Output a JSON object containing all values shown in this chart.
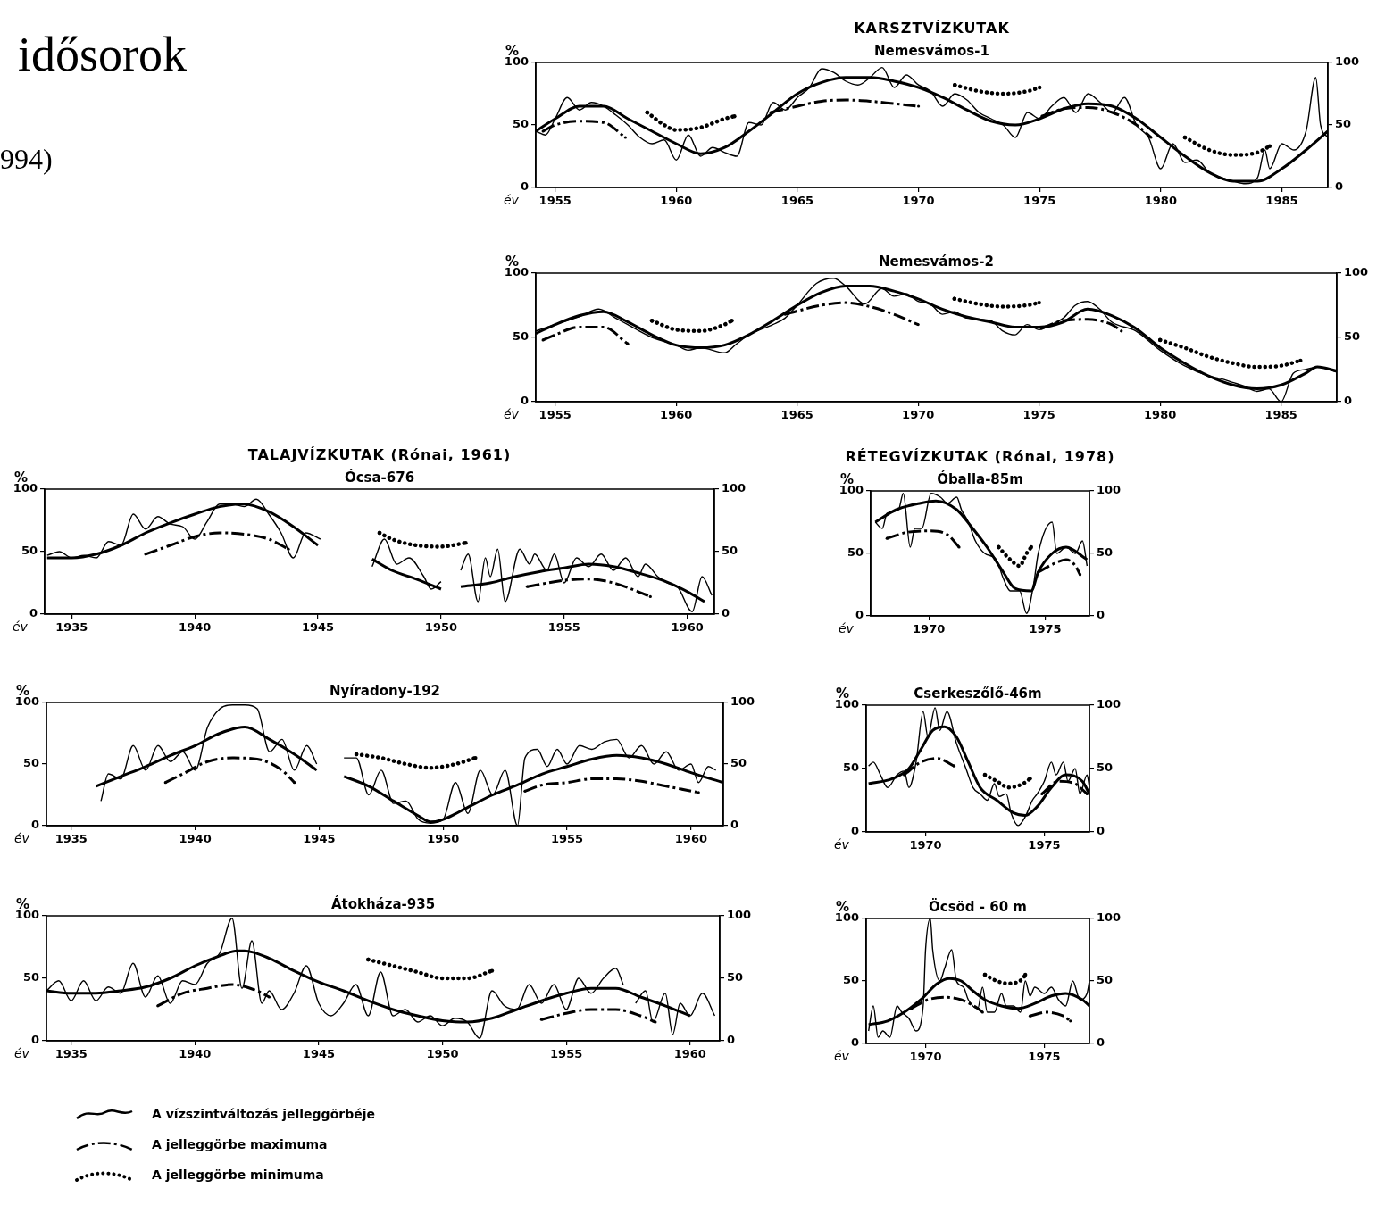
{
  "chart_data": [
    {
      "type": "line",
      "title": "Nemesvámos-1",
      "xlabel": "év",
      "ylabel": "%",
      "annotations": [
        "idősorok",
        "994)",
        "KARSZTVÍZKUTAK"
      ],
      "xlim": [
        1954.2,
        1986.9
      ],
      "xticks": [
        1955,
        1960,
        1965,
        1970,
        1975,
        1980,
        1985
      ],
      "ylim": [
        0,
        100
      ],
      "yticks": [
        0,
        50,
        100
      ],
      "y2lim": [
        0,
        100
      ],
      "y2ticks": [
        0,
        50,
        100
      ],
      "grid": false,
      "series": [
        {
          "color": "#000000",
          "line_style": "solid",
          "x": [
            1954.2,
            1954.6,
            1955,
            1955.5,
            1956,
            1956.5,
            1957,
            1957.5,
            1958,
            1958.5,
            1959,
            1959.5,
            1960,
            1960.5,
            1961,
            1961.5,
            1962,
            1962.5,
            1963,
            1963.5,
            1964,
            1964.5,
            1965,
            1965.5,
            1966,
            1966.5,
            1967,
            1967.5,
            1968,
            1968.5,
            1969,
            1969.5,
            1970,
            1970.5,
            1971,
            1971.5,
            1972,
            1972.5,
            1973,
            1973.5,
            1974,
            1974.5,
            1975,
            1975.5,
            1976,
            1976.5,
            1977,
            1977.5,
            1978,
            1978.5,
            1979,
            1979.5,
            1980,
            1980.5,
            1981,
            1981.5,
            1982,
            1982.5,
            1983,
            1983.5,
            1984,
            1984.3,
            1984.5,
            1985,
            1985.5,
            1986,
            1986.4,
            1986.6,
            1986.9
          ],
          "values": [
            45,
            42,
            55,
            72,
            62,
            68,
            65,
            58,
            50,
            40,
            35,
            38,
            22,
            42,
            25,
            32,
            28,
            25,
            52,
            50,
            68,
            62,
            72,
            80,
            95,
            92,
            85,
            82,
            88,
            96,
            80,
            90,
            82,
            77,
            65,
            75,
            70,
            60,
            55,
            50,
            40,
            60,
            55,
            65,
            72,
            60,
            75,
            68,
            60,
            72,
            50,
            40,
            15,
            35,
            20,
            22,
            12,
            8,
            5,
            3,
            8,
            30,
            15,
            35,
            30,
            45,
            88,
            50,
            40
          ]
        },
        {
          "color": "#000000",
          "line_style": "solid",
          "x": [
            1954.2,
            1955,
            1956,
            1957,
            1958,
            1959,
            1960,
            1961,
            1962,
            1963,
            1964,
            1965,
            1966,
            1967,
            1968,
            1969,
            1970,
            1971,
            1972,
            1973,
            1974,
            1975,
            1976,
            1977,
            1978,
            1979,
            1980,
            1981,
            1982,
            1983,
            1984,
            1985,
            1986,
            1986.9
          ],
          "values": [
            45,
            55,
            65,
            65,
            55,
            45,
            35,
            27,
            32,
            45,
            60,
            75,
            84,
            88,
            88,
            85,
            80,
            72,
            62,
            53,
            50,
            55,
            63,
            67,
            65,
            55,
            40,
            25,
            12,
            5,
            5,
            15,
            30,
            45
          ]
        },
        {
          "color": "#000000",
          "line_style": "dashed",
          "x": [
            1954.5,
            1955,
            1956,
            1957,
            1957.9
          ],
          "values": [
            45,
            50,
            53,
            52,
            40
          ]
        },
        {
          "color": "#000000",
          "line_style": "dashed",
          "x": [
            1963.9,
            1965,
            1966,
            1967,
            1968,
            1969,
            1970
          ],
          "values": [
            60,
            65,
            69,
            70,
            69,
            67,
            65
          ]
        },
        {
          "color": "#000000",
          "line_style": "dashed",
          "x": [
            1975.1,
            1976,
            1977,
            1978,
            1979,
            1979.6
          ],
          "values": [
            57,
            63,
            64,
            60,
            50,
            40
          ]
        },
        {
          "color": "#000000",
          "line_style": "dotted",
          "x": [
            1958.8,
            1959.5,
            1960,
            1961,
            1962,
            1962.4
          ],
          "values": [
            60,
            50,
            46,
            48,
            55,
            57
          ]
        },
        {
          "color": "#000000",
          "line_style": "dotted",
          "x": [
            1971.5,
            1972.5,
            1973.5,
            1974.5,
            1975
          ],
          "values": [
            82,
            77,
            75,
            77,
            80
          ]
        },
        {
          "color": "#000000",
          "line_style": "dotted",
          "x": [
            1981,
            1982,
            1983,
            1984,
            1984.5
          ],
          "values": [
            40,
            30,
            26,
            28,
            33
          ]
        }
      ]
    },
    {
      "type": "line",
      "title": "Nemesvámos-2",
      "xlabel": "év",
      "ylabel": "%",
      "xlim": [
        1954.2,
        1987.3
      ],
      "xticks": [
        1955,
        1960,
        1965,
        1970,
        1975,
        1980,
        1985
      ],
      "ylim": [
        0,
        100
      ],
      "yticks": [
        0,
        50,
        100
      ],
      "y2lim": [
        0,
        100
      ],
      "y2ticks": [
        0,
        50,
        100
      ],
      "grid": false,
      "series": [
        {
          "color": "#000000",
          "line_style": "solid",
          "x": [
            1954.2,
            1955,
            1956,
            1956.8,
            1957.5,
            1958,
            1959,
            1960,
            1960.5,
            1961,
            1962,
            1962.5,
            1963,
            1964,
            1964.5,
            1965,
            1965.8,
            1966.5,
            1967,
            1967.8,
            1968.5,
            1969,
            1969.5,
            1970,
            1970.5,
            1971,
            1971.5,
            1972,
            1973,
            1973.5,
            1974,
            1974.5,
            1975,
            1975.5,
            1976,
            1976.5,
            1977,
            1977.5,
            1978,
            1979,
            1980,
            1981,
            1982,
            1982.5,
            1983,
            1983.5,
            1984,
            1984.5,
            1985,
            1985.5,
            1986,
            1986.5,
            1987.3
          ],
          "values": [
            55,
            60,
            66,
            72,
            65,
            60,
            50,
            44,
            40,
            42,
            38,
            45,
            52,
            60,
            65,
            75,
            92,
            96,
            90,
            76,
            88,
            82,
            84,
            78,
            76,
            68,
            70,
            65,
            63,
            55,
            52,
            60,
            56,
            60,
            65,
            75,
            78,
            72,
            62,
            55,
            40,
            28,
            20,
            18,
            15,
            12,
            8,
            10,
            0,
            22,
            25,
            27,
            23
          ]
        },
        {
          "color": "#000000",
          "line_style": "solid",
          "x": [
            1954.2,
            1955,
            1956,
            1957,
            1958,
            1959,
            1960,
            1961,
            1962,
            1963,
            1964,
            1965,
            1966,
            1967,
            1968,
            1969,
            1970,
            1971,
            1972,
            1973,
            1974,
            1975,
            1976,
            1977,
            1978,
            1979,
            1980,
            1981,
            1982,
            1983,
            1984,
            1985,
            1986,
            1986.5,
            1987.3
          ],
          "values": [
            53,
            60,
            67,
            70,
            62,
            52,
            44,
            42,
            44,
            52,
            63,
            75,
            85,
            90,
            90,
            86,
            80,
            72,
            66,
            62,
            58,
            58,
            62,
            72,
            67,
            57,
            42,
            30,
            20,
            13,
            10,
            13,
            22,
            27,
            24
          ]
        },
        {
          "color": "#000000",
          "line_style": "dashed",
          "x": [
            1954.5,
            1955,
            1956,
            1957,
            1958
          ],
          "values": [
            48,
            52,
            58,
            58,
            45
          ]
        },
        {
          "color": "#000000",
          "line_style": "dashed",
          "x": [
            1964.5,
            1966,
            1967,
            1968,
            1969,
            1970
          ],
          "values": [
            68,
            75,
            77,
            74,
            68,
            60
          ]
        },
        {
          "color": "#000000",
          "line_style": "dashed",
          "x": [
            1975.1,
            1976,
            1977,
            1978,
            1978.4
          ],
          "values": [
            57,
            63,
            64,
            60,
            55
          ]
        },
        {
          "color": "#000000",
          "line_style": "dotted",
          "x": [
            1959,
            1960,
            1961,
            1962,
            1962.3
          ],
          "values": [
            63,
            56,
            55,
            60,
            63
          ]
        },
        {
          "color": "#000000",
          "line_style": "dotted",
          "x": [
            1971.5,
            1972.5,
            1973.5,
            1974.5,
            1975
          ],
          "values": [
            80,
            76,
            74,
            75,
            77
          ]
        },
        {
          "color": "#000000",
          "line_style": "dotted",
          "x": [
            1980,
            1981,
            1982,
            1983,
            1984,
            1985,
            1985.8
          ],
          "values": [
            48,
            42,
            35,
            30,
            27,
            28,
            32
          ]
        }
      ]
    },
    {
      "type": "line",
      "title": "Ócsa-676",
      "xlabel": "év",
      "ylabel": "%",
      "annotations": [
        "TALAJVÍZKUTAK (Rónai, 1961)"
      ],
      "xlim": [
        1933.9,
        1961.1
      ],
      "xticks": [
        1935,
        1940,
        1945,
        1950,
        1955,
        1960
      ],
      "ylim": [
        0,
        100
      ],
      "yticks": [
        0,
        50,
        100
      ],
      "y2lim": [
        0,
        100
      ],
      "y2ticks": [
        0,
        50,
        100
      ],
      "grid": false,
      "series": [
        {
          "color": "#000000",
          "line_style": "solid",
          "x": [
            1934,
            1934.5,
            1935,
            1935.5,
            1936,
            1936.5,
            1937,
            1937.5,
            1938,
            1938.5,
            1939,
            1939.5,
            1940,
            1940.5,
            1941,
            1941.5,
            1942,
            1942.5,
            1943,
            1943.5,
            1944,
            1944.5,
            1945.1
          ],
          "values": [
            47,
            50,
            45,
            47,
            45,
            58,
            55,
            80,
            68,
            78,
            72,
            70,
            60,
            74,
            88,
            88,
            86,
            92,
            80,
            65,
            45,
            65,
            60
          ]
        },
        {
          "color": "#000000",
          "line_style": "solid",
          "x": [
            1934,
            1935,
            1936,
            1937,
            1938,
            1939,
            1940,
            1941,
            1942,
            1943,
            1944,
            1945
          ],
          "values": [
            45,
            45,
            48,
            55,
            65,
            73,
            80,
            86,
            88,
            82,
            70,
            55
          ]
        },
        {
          "color": "#000000",
          "line_style": "solid",
          "x": [
            1947.2,
            1947.7,
            1948.2,
            1948.7,
            1949.3,
            1949.6,
            1950
          ],
          "values": [
            38,
            60,
            40,
            45,
            30,
            20,
            26
          ]
        },
        {
          "color": "#000000",
          "line_style": "solid",
          "x": [
            1947.2,
            1948,
            1949,
            1950
          ],
          "values": [
            44,
            35,
            28,
            20
          ]
        },
        {
          "color": "#000000",
          "line_style": "solid",
          "x": [
            1950.8,
            1951.1,
            1951.5,
            1951.8,
            1952,
            1952.3,
            1952.6,
            1953.2,
            1953.6,
            1953.8,
            1954.3,
            1954.6,
            1955,
            1955.5,
            1956,
            1956.5,
            1957,
            1957.5,
            1958,
            1958.3,
            1958.8,
            1959.2,
            1959.6,
            1960.2,
            1960.6,
            1961
          ],
          "values": [
            35,
            48,
            10,
            45,
            30,
            52,
            10,
            52,
            40,
            48,
            35,
            48,
            25,
            45,
            38,
            48,
            35,
            45,
            30,
            40,
            30,
            25,
            22,
            2,
            30,
            15
          ]
        },
        {
          "color": "#000000",
          "line_style": "solid",
          "x": [
            1950.8,
            1952,
            1953,
            1954,
            1955,
            1956,
            1957,
            1958,
            1959,
            1960,
            1960.7
          ],
          "values": [
            22,
            25,
            30,
            34,
            37,
            40,
            38,
            33,
            27,
            18,
            10
          ]
        },
        {
          "color": "#000000",
          "line_style": "dashed",
          "x": [
            1938,
            1939,
            1940,
            1941,
            1942,
            1943,
            1943.8
          ],
          "values": [
            48,
            55,
            62,
            65,
            64,
            60,
            52
          ]
        },
        {
          "color": "#000000",
          "line_style": "dashed",
          "x": [
            1953.5,
            1955,
            1956,
            1957,
            1958,
            1958.5
          ],
          "values": [
            22,
            27,
            28,
            25,
            18,
            14
          ]
        },
        {
          "color": "#000000",
          "line_style": "dotted",
          "x": [
            1947.5,
            1948,
            1949,
            1950,
            1951
          ],
          "values": [
            65,
            60,
            55,
            54,
            57
          ]
        }
      ]
    },
    {
      "type": "line",
      "title": "Nyíradony-192",
      "xlabel": "év",
      "ylabel": "%",
      "xlim": [
        1934,
        1961.3
      ],
      "xticks": [
        1935,
        1940,
        1945,
        1950,
        1955,
        1960
      ],
      "ylim": [
        0,
        100
      ],
      "yticks": [
        0,
        50,
        100
      ],
      "y2lim": [
        0,
        100
      ],
      "y2ticks": [
        0,
        50,
        100
      ],
      "grid": false,
      "series": [
        {
          "color": "#000000",
          "line_style": "solid",
          "x": [
            1936.2,
            1936.5,
            1937,
            1937.5,
            1938,
            1938.5,
            1939,
            1939.5,
            1940,
            1940.5,
            1941,
            1941.5,
            1942,
            1942.5,
            1943,
            1943.5,
            1944,
            1944.5,
            1944.9,
            1945.5,
            1946,
            1946.5,
            1947,
            1947.5,
            1948,
            1948.5,
            1949,
            1949.5,
            1950,
            1950.5,
            1951,
            1951.5,
            1952,
            1952.5,
            1953,
            1953.3,
            1953.8,
            1954.2,
            1954.6,
            1955,
            1955.5,
            1956,
            1956.5,
            1957,
            1957.5,
            1958,
            1958.5,
            1959,
            1959.5,
            1960,
            1960.3,
            1960.7,
            1961
          ],
          "values": [
            20,
            42,
            38,
            65,
            45,
            65,
            52,
            60,
            45,
            80,
            95,
            98,
            98,
            95,
            60,
            70,
            45,
            65,
            50,
            null,
            55,
            55,
            25,
            45,
            18,
            20,
            5,
            2,
            5,
            35,
            10,
            45,
            25,
            45,
            0,
            55,
            62,
            48,
            62,
            50,
            65,
            62,
            68,
            70,
            55,
            65,
            50,
            60,
            45,
            50,
            35,
            48,
            45
          ]
        },
        {
          "color": "#000000",
          "line_style": "solid",
          "x": [
            1936,
            1937,
            1938,
            1939,
            1940,
            1941,
            1942,
            1943,
            1944,
            1944.9,
            1945.5,
            1946,
            1947,
            1948,
            1949,
            1949.5,
            1950,
            1951,
            1952,
            1953,
            1954,
            1955,
            1956,
            1957,
            1958,
            1959,
            1960,
            1961.3
          ],
          "values": [
            32,
            40,
            48,
            57,
            65,
            75,
            80,
            70,
            58,
            45,
            null,
            40,
            32,
            20,
            8,
            3,
            5,
            15,
            25,
            33,
            42,
            48,
            54,
            57,
            55,
            50,
            43,
            35
          ]
        },
        {
          "color": "#000000",
          "line_style": "dashed",
          "x": [
            1938.8,
            1939.5,
            1940.5,
            1941.5,
            1942.5,
            1943.5,
            1944
          ],
          "values": [
            35,
            42,
            52,
            55,
            54,
            45,
            35
          ]
        },
        {
          "color": "#000000",
          "line_style": "dashed",
          "x": [
            1953.3,
            1954,
            1955,
            1956,
            1957,
            1958,
            1959,
            1960.3
          ],
          "values": [
            28,
            33,
            35,
            38,
            38,
            36,
            32,
            27
          ]
        },
        {
          "color": "#000000",
          "line_style": "dotted",
          "x": [
            1946.5,
            1947.5,
            1948.5,
            1949.5,
            1950.5,
            1951.3
          ],
          "values": [
            58,
            55,
            50,
            47,
            50,
            55
          ]
        }
      ]
    },
    {
      "type": "line",
      "title": "Átokháza-935",
      "xlabel": "év",
      "ylabel": "%",
      "legend": "bottom",
      "xlim": [
        1934,
        1961.2
      ],
      "xticks": [
        1935,
        1940,
        1945,
        1950,
        1955,
        1960
      ],
      "ylim": [
        0,
        100
      ],
      "yticks": [
        0,
        50,
        100
      ],
      "y2lim": [
        0,
        100
      ],
      "y2ticks": [
        0,
        50,
        100
      ],
      "grid": false,
      "series": [
        {
          "color": "#000000",
          "line_style": "solid",
          "x": [
            1934,
            1934.5,
            1935,
            1935.5,
            1936,
            1936.5,
            1937,
            1937.5,
            1938,
            1938.5,
            1939,
            1939.5,
            1940,
            1940.5,
            1941,
            1941.5,
            1941.9,
            1942.3,
            1942.7,
            1943,
            1943.5,
            1944,
            1944.5,
            1945,
            1945.5,
            1946,
            1946.5,
            1947,
            1947.5,
            1948,
            1948.5,
            1949,
            1949.5,
            1950,
            1950.5,
            1951,
            1951.5,
            1952,
            1952.5,
            1953,
            1953.5,
            1954,
            1954.5,
            1955,
            1955.5,
            1956,
            1956.5,
            1957,
            1957.3,
            1957.5,
            1957.8,
            1958.2,
            1958.5,
            1959,
            1959.3,
            1959.6,
            1960,
            1960.5,
            1961
          ],
          "values": [
            40,
            48,
            32,
            48,
            32,
            43,
            38,
            62,
            35,
            52,
            30,
            48,
            45,
            62,
            70,
            98,
            42,
            80,
            30,
            40,
            25,
            38,
            60,
            30,
            20,
            30,
            45,
            20,
            55,
            20,
            25,
            15,
            20,
            12,
            18,
            15,
            2,
            40,
            28,
            25,
            45,
            30,
            45,
            25,
            50,
            38,
            50,
            58,
            45,
            null,
            30,
            40,
            15,
            38,
            5,
            30,
            20,
            38,
            20
          ]
        },
        {
          "name": "A vízszintváltozás jelleggörbéje",
          "color": "#000000",
          "line_style": "solid",
          "x": [
            1934,
            1935,
            1936,
            1937,
            1938,
            1939,
            1940,
            1941,
            1941.7,
            1942,
            1943,
            1944,
            1945,
            1946,
            1947,
            1948,
            1949,
            1950,
            1951,
            1952,
            1953,
            1954,
            1955,
            1956,
            1957,
            1958,
            1959,
            1960
          ],
          "values": [
            40,
            38,
            38,
            40,
            43,
            50,
            60,
            68,
            72,
            72,
            66,
            56,
            47,
            40,
            32,
            25,
            20,
            16,
            15,
            18,
            25,
            32,
            38,
            42,
            42,
            35,
            28,
            20
          ]
        },
        {
          "name": "A jelleggörbe maximuma",
          "color": "#000000",
          "line_style": "dashed",
          "x": [
            1938.5,
            1939.5,
            1940.5,
            1941.5,
            1942.5,
            1943
          ],
          "values": [
            28,
            38,
            42,
            45,
            40,
            35
          ]
        },
        {
          "color": "#000000",
          "line_style": "dashed",
          "x": [
            1954,
            1955,
            1956,
            1957,
            1958,
            1958.6
          ],
          "values": [
            17,
            22,
            25,
            25,
            20,
            15
          ]
        },
        {
          "name": "A jelleggörbe minimuma",
          "color": "#000000",
          "line_style": "dotted",
          "x": [
            1947,
            1948,
            1949,
            1950,
            1951,
            1952
          ],
          "values": [
            65,
            60,
            55,
            50,
            50,
            56
          ]
        }
      ]
    },
    {
      "type": "line",
      "title": "Óballa-85m",
      "xlabel": "év",
      "ylabel": "%",
      "annotations": [
        "RÉTEGVÍZKUTAK (Rónai, 1978)"
      ],
      "xlim": [
        1967.5,
        1976.9
      ],
      "xticks": [
        1970,
        1975
      ],
      "ylim": [
        0,
        100
      ],
      "yticks": [
        0,
        50,
        100
      ],
      "y2lim": [
        0,
        100
      ],
      "y2ticks": [
        0,
        50,
        100
      ],
      "grid": false,
      "series": [
        {
          "color": "#000000",
          "line_style": "solid",
          "x": [
            1967.7,
            1968.0,
            1968.2,
            1968.7,
            1968.9,
            1969.2,
            1969.4,
            1969.7,
            1970.1,
            1970.5,
            1970.8,
            1971.2,
            1971.4,
            1971.7,
            1972.0,
            1972.4,
            1972.9,
            1973.2,
            1973.5,
            1973.9,
            1974.2,
            1974.5,
            1974.7,
            1975.3,
            1975.5,
            1975.9,
            1976.3,
            1976.6,
            1976.8
          ],
          "values": [
            75,
            70,
            82,
            85,
            98,
            55,
            70,
            70,
            98,
            95,
            90,
            95,
            85,
            75,
            60,
            50,
            45,
            30,
            20,
            20,
            2,
            25,
            50,
            75,
            50,
            55,
            50,
            60,
            40
          ]
        },
        {
          "color": "#000000",
          "line_style": "solid",
          "x": [
            1967.7,
            1968.6,
            1969.6,
            1970.3,
            1971.2,
            1971.8,
            1972.5,
            1973.2,
            1973.7,
            1974.4,
            1974.7,
            1975.3,
            1975.9,
            1976.8
          ],
          "values": [
            75,
            85,
            90,
            92,
            85,
            72,
            55,
            35,
            22,
            20,
            35,
            50,
            55,
            45
          ]
        },
        {
          "color": "#000000",
          "line_style": "dashed",
          "x": [
            1968.2,
            1969.1,
            1970.0,
            1970.8,
            1971.3
          ],
          "values": [
            62,
            67,
            68,
            65,
            55
          ]
        },
        {
          "color": "#000000",
          "line_style": "dashed",
          "x": [
            1974.7,
            1975.4,
            1975.9,
            1976.3,
            1976.5
          ],
          "values": [
            35,
            42,
            45,
            40,
            33
          ]
        },
        {
          "color": "#000000",
          "line_style": "dotted",
          "x": [
            1973.0,
            1973.5,
            1973.9,
            1974.2,
            1974.4
          ],
          "values": [
            55,
            45,
            40,
            50,
            55
          ]
        }
      ]
    },
    {
      "type": "line",
      "title": "Cserkeszőlő-46m",
      "xlabel": "év",
      "ylabel": "%",
      "xlim": [
        1967.5,
        1976.9
      ],
      "xticks": [
        1970,
        1975
      ],
      "ylim": [
        0,
        100
      ],
      "yticks": [
        0,
        50,
        100
      ],
      "y2lim": [
        0,
        100
      ],
      "y2ticks": [
        0,
        50,
        100
      ],
      "grid": false,
      "series": [
        {
          "color": "#000000",
          "line_style": "solid",
          "x": [
            1967.6,
            1967.8,
            1968.1,
            1968.4,
            1968.8,
            1969.1,
            1969.3,
            1969.6,
            1969.9,
            1970.1,
            1970.4,
            1970.6,
            1970.9,
            1971.3,
            1971.7,
            1972.0,
            1972.3,
            1972.6,
            1972.9,
            1973.1,
            1973.4,
            1973.6,
            1973.9,
            1974.2,
            1974.5,
            1974.7,
            1975.0,
            1975.3,
            1975.5,
            1975.8,
            1976.0,
            1976.3,
            1976.5,
            1976.8,
            1976.9
          ],
          "values": [
            52,
            55,
            45,
            35,
            45,
            48,
            35,
            55,
            95,
            75,
            98,
            80,
            95,
            70,
            50,
            35,
            30,
            25,
            38,
            28,
            30,
            15,
            5,
            12,
            25,
            30,
            40,
            55,
            45,
            55,
            40,
            50,
            30,
            45,
            35
          ]
        },
        {
          "color": "#000000",
          "line_style": "solid",
          "x": [
            1967.6,
            1968.6,
            1969.3,
            1969.8,
            1970.3,
            1970.8,
            1971.3,
            1971.8,
            1972.3,
            1973.0,
            1973.7,
            1974.2,
            1974.7,
            1975.3,
            1975.9,
            1976.6,
            1976.9
          ],
          "values": [
            38,
            42,
            50,
            65,
            80,
            83,
            75,
            55,
            35,
            25,
            15,
            13,
            20,
            35,
            45,
            40,
            30
          ]
        },
        {
          "color": "#000000",
          "line_style": "dashed",
          "x": [
            1969.1,
            1969.8,
            1970.5,
            1971.2
          ],
          "values": [
            45,
            55,
            58,
            52
          ]
        },
        {
          "color": "#000000",
          "line_style": "dashed",
          "x": [
            1974.9,
            1975.6,
            1976.3,
            1976.8
          ],
          "values": [
            30,
            40,
            38,
            30
          ]
        },
        {
          "color": "#000000",
          "line_style": "dotted",
          "x": [
            1972.5,
            1973.0,
            1973.5,
            1974.1,
            1974.4
          ],
          "values": [
            45,
            40,
            35,
            38,
            42
          ]
        }
      ]
    },
    {
      "type": "line",
      "title": "Öcsöd - 60 m",
      "xlabel": "év",
      "ylabel": "%",
      "xlim": [
        1967.5,
        1976.9
      ],
      "xticks": [
        1970,
        1975
      ],
      "ylim": [
        0,
        100
      ],
      "yticks": [
        0,
        50,
        100
      ],
      "y2lim": [
        0,
        100
      ],
      "y2ticks": [
        0,
        50,
        100
      ],
      "grid": false,
      "series": [
        {
          "color": "#000000",
          "line_style": "solid",
          "x": [
            1967.6,
            1967.8,
            1968.0,
            1968.2,
            1968.5,
            1968.8,
            1969.0,
            1969.3,
            1969.6,
            1969.9,
            1970.0,
            1970.2,
            1970.3,
            1970.6,
            1970.8,
            1971.1,
            1971.3,
            1971.6,
            1971.8,
            1972.2,
            1972.4,
            1972.6,
            1972.9,
            1973.2,
            1973.4,
            1973.7,
            1974.0,
            1974.2,
            1974.4,
            1974.6,
            1975.0,
            1975.3,
            1975.6,
            1975.9,
            1976.2,
            1976.5,
            1976.8,
            1976.9
          ],
          "values": [
            10,
            30,
            5,
            10,
            5,
            30,
            25,
            20,
            10,
            30,
            75,
            100,
            75,
            50,
            60,
            75,
            50,
            45,
            35,
            28,
            45,
            25,
            25,
            40,
            30,
            30,
            25,
            50,
            38,
            45,
            40,
            45,
            35,
            30,
            50,
            35,
            40,
            50
          ]
        },
        {
          "color": "#000000",
          "line_style": "solid",
          "x": [
            1967.6,
            1968.4,
            1969.1,
            1969.8,
            1970.5,
            1971.0,
            1971.5,
            1972.0,
            1972.5,
            1973.2,
            1973.9,
            1974.6,
            1975.3,
            1975.9,
            1976.6,
            1976.9
          ],
          "values": [
            15,
            18,
            25,
            35,
            48,
            52,
            50,
            42,
            35,
            30,
            28,
            32,
            38,
            40,
            35,
            30
          ]
        },
        {
          "color": "#000000",
          "line_style": "dashed",
          "x": [
            1969.4,
            1970.1,
            1970.8,
            1971.5,
            1972.2,
            1972.4
          ],
          "values": [
            28,
            35,
            37,
            35,
            28,
            25
          ]
        },
        {
          "color": "#000000",
          "line_style": "dashed",
          "x": [
            1974.4,
            1975.1,
            1975.8,
            1976.1
          ],
          "values": [
            22,
            25,
            22,
            18
          ]
        },
        {
          "color": "#000000",
          "line_style": "dotted",
          "x": [
            1972.5,
            1973.0,
            1973.5,
            1974.1,
            1974.2
          ],
          "values": [
            55,
            50,
            48,
            52,
            55
          ]
        }
      ]
    }
  ]
}
